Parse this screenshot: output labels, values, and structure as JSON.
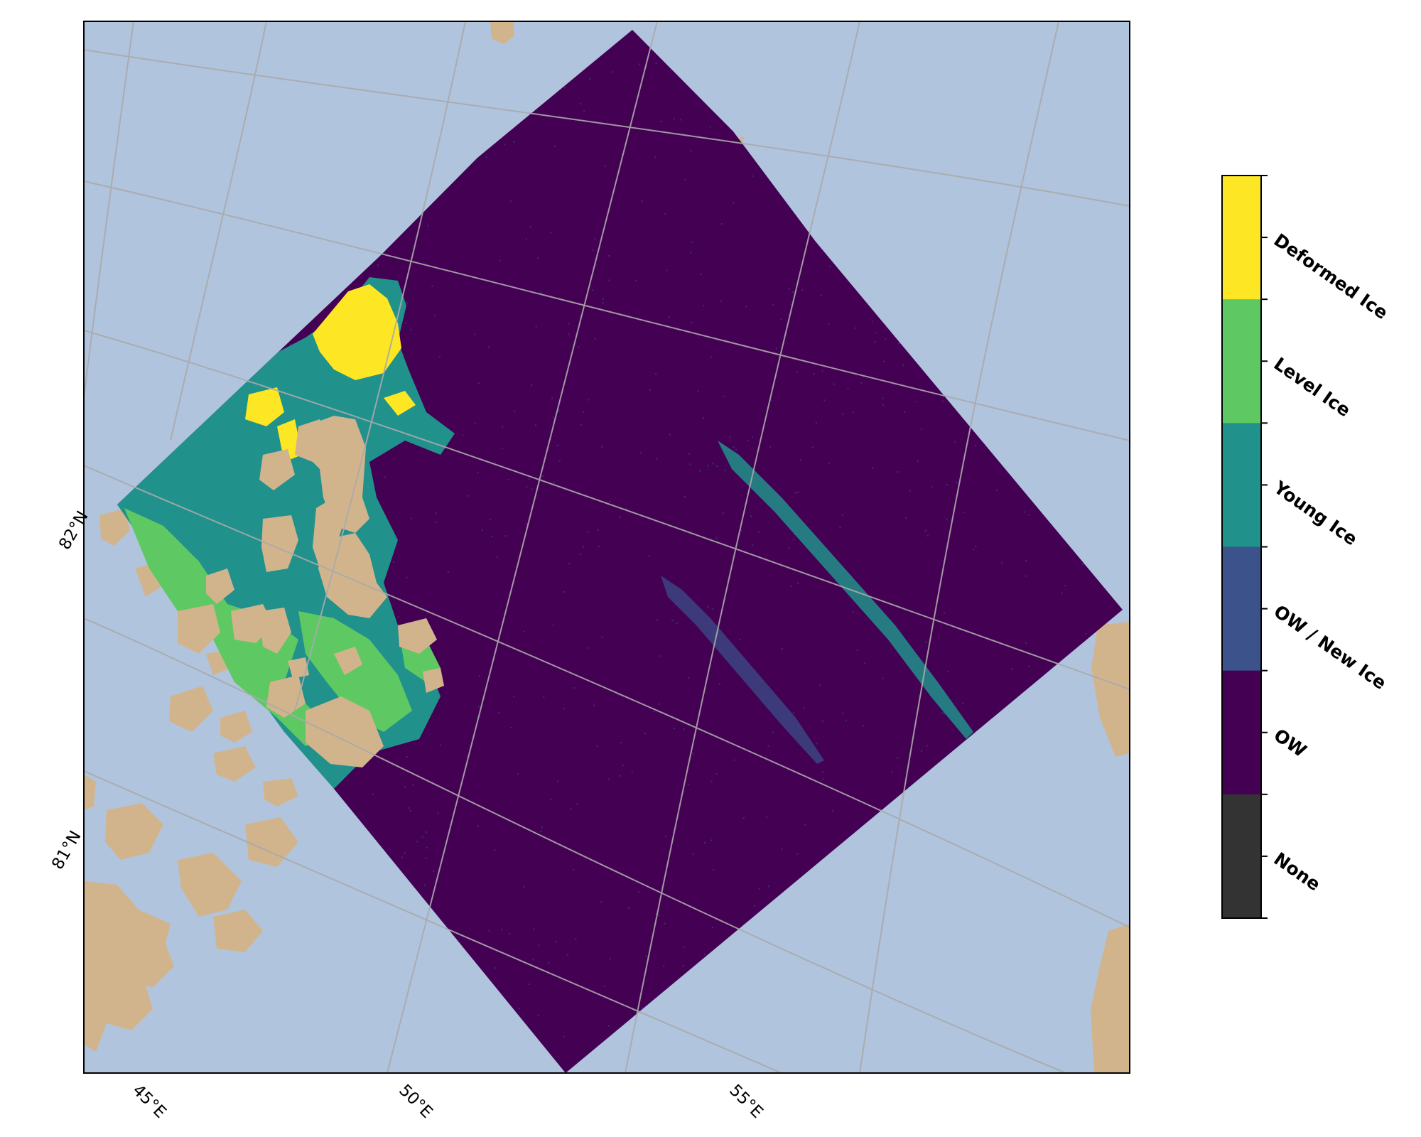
{
  "map": {
    "ocean_color": "#b0c4de",
    "land_color": "#d2b48c",
    "grid_color": "#aaaaaa",
    "latitude_labels": [
      "82°N",
      "81°N"
    ],
    "longitude_labels": [
      "45°E",
      "50°E",
      "55°E"
    ]
  },
  "colorbar": {
    "classes": [
      {
        "label": "Deformed Ice",
        "color": "#fde725"
      },
      {
        "label": "Level Ice",
        "color": "#5ec962"
      },
      {
        "label": "Young Ice",
        "color": "#21918c"
      },
      {
        "label": "OW / New Ice",
        "color": "#3b528b"
      },
      {
        "label": "OW",
        "color": "#440154"
      },
      {
        "label": "None",
        "color": "#333333"
      }
    ]
  }
}
